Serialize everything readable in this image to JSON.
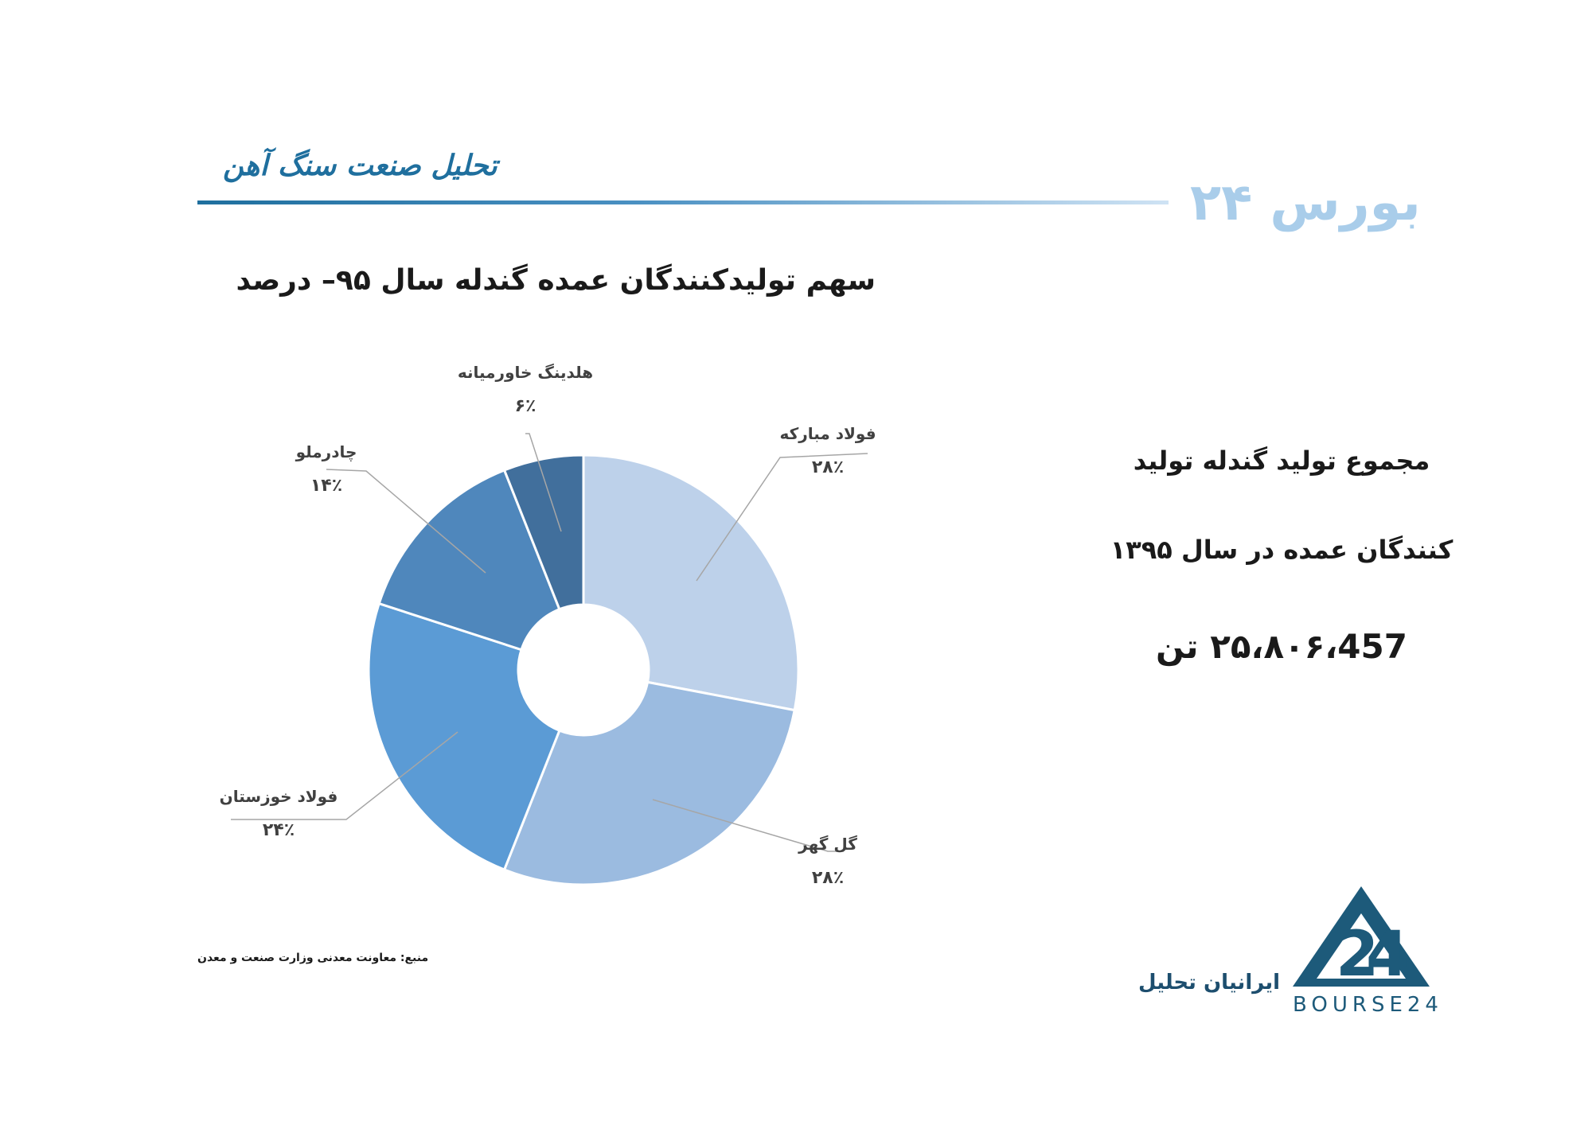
{
  "header": {
    "title": "تحلیل صنعت سنگ آهن",
    "brand": "بورس ۲۴"
  },
  "chart_data": {
    "type": "pie",
    "title": "سهم تولیدکنندگان عمده گندله سال ۹۵– درصد",
    "categories": [
      "فولاد مبارکه",
      "گل گهر",
      "فولاد خوزستان",
      "چادرملو",
      "هلدینگ خاورمیانه"
    ],
    "values": [
      28,
      28,
      24,
      14,
      6
    ],
    "value_labels": [
      "۲۸٪",
      "۲۸٪",
      "۲۴٪",
      "۱۴٪",
      "۶٪"
    ],
    "colors": [
      "#bdd1ea",
      "#9bbbe0",
      "#5b9bd5",
      "#4f87bc",
      "#416f9c"
    ],
    "donut": true
  },
  "info": {
    "line1": "مجموع تولید گندله تولید",
    "line2": "کنندگان عمده در سال ۱۳۹۵",
    "line3": "۲۵،۸۰۶،457 تن"
  },
  "footer": {
    "source": "منبع: معاونت معدنی وزارت صنعت و معدن",
    "brand": "ایرانیان تحلیل",
    "logo_text": "BOURSE24"
  }
}
